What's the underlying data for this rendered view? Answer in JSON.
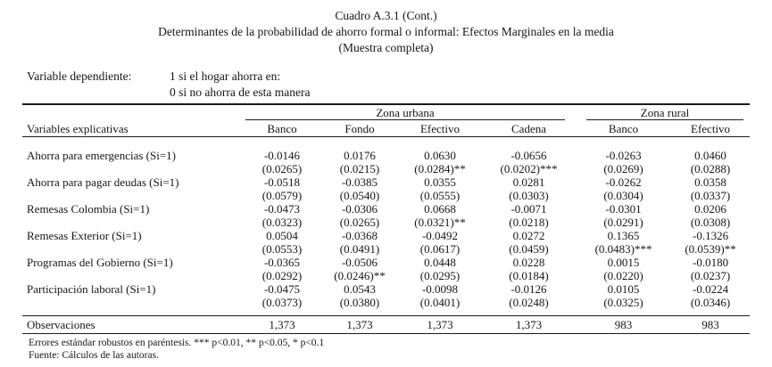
{
  "title": {
    "line1": "Cuadro A.3.1 (Cont.)",
    "line2": "Determinantes de la probabilidad de ahorro formal o informal: Efectos Marginales en la media",
    "line3": "(Muestra completa)"
  },
  "dependent_variable": {
    "label": "Variable dependiente:",
    "value_line1": "1 si el hogar ahorra en:",
    "value_line2": "0 si no ahorra de esta manera"
  },
  "table": {
    "row_header": "Variables explicativas",
    "group_headers": [
      {
        "label": "Zona urbana",
        "span": 4
      },
      {
        "label": "Zona rural",
        "span": 2
      }
    ],
    "column_headers": [
      "Banco",
      "Fondo",
      "Efectivo",
      "Cadena",
      "Banco",
      "Efectivo"
    ],
    "rows": [
      {
        "label": "Ahorra para emergencias (Si=1)",
        "coefficients": [
          "-0.0146",
          "0.0176",
          "0.0630",
          "-0.0656",
          "-0.0263",
          "0.0460"
        ],
        "std_errors": [
          "(0.0265)",
          "(0.0215)",
          "(0.0284)**",
          "(0.0202)***",
          "(0.0269)",
          "(0.0288)"
        ]
      },
      {
        "label": "Ahorra para pagar deudas (Si=1)",
        "coefficients": [
          "-0.0518",
          "-0.0385",
          "0.0355",
          "0.0281",
          "-0.0262",
          "0.0358"
        ],
        "std_errors": [
          "(0.0579)",
          "(0.0540)",
          "(0.0555)",
          "(0.0303)",
          "(0.0304)",
          "(0.0337)"
        ]
      },
      {
        "label": "Remesas Colombia (Si=1)",
        "coefficients": [
          "-0.0473",
          "-0.0306",
          "0.0668",
          "-0.0071",
          "-0.0301",
          "0.0206"
        ],
        "std_errors": [
          "(0.0323)",
          "(0.0265)",
          "(0.0321)**",
          "(0.0218)",
          "(0.0291)",
          "(0.0308)"
        ]
      },
      {
        "label": "Remesas Exterior (Si=1)",
        "coefficients": [
          "0.0504",
          "-0.0368",
          "-0.0492",
          "0.0272",
          "0.1365",
          "-0.1326"
        ],
        "std_errors": [
          "(0.0553)",
          "(0.0491)",
          "(0.0617)",
          "(0.0459)",
          "(0.0483)***",
          "(0.0539)**"
        ]
      },
      {
        "label": "Programas del Gobierno (Si=1)",
        "coefficients": [
          "-0.0365",
          "-0.0506",
          "0.0448",
          "0.0228",
          "0.0015",
          "-0.0180"
        ],
        "std_errors": [
          "(0.0292)",
          "(0.0246)**",
          "(0.0295)",
          "(0.0184)",
          "(0.0220)",
          "(0.0237)"
        ]
      },
      {
        "label": "Participación laboral (Si=1)",
        "coefficients": [
          "-0.0475",
          "0.0543",
          "-0.0098",
          "-0.0126",
          "0.0105",
          "-0.0224"
        ],
        "std_errors": [
          "(0.0373)",
          "(0.0380)",
          "(0.0401)",
          "(0.0248)",
          "(0.0325)",
          "(0.0346)"
        ]
      }
    ],
    "observations": {
      "label": "Observaciones",
      "values": [
        "1,373",
        "1,373",
        "1,373",
        "1,373",
        "983",
        "983"
      ]
    }
  },
  "footnotes": {
    "line1": "Errores estándar robustos en paréntesis. *** p<0.01, ** p<0.05, * p<0.1",
    "line2": "Fuente: Cálculos de las autoras."
  }
}
